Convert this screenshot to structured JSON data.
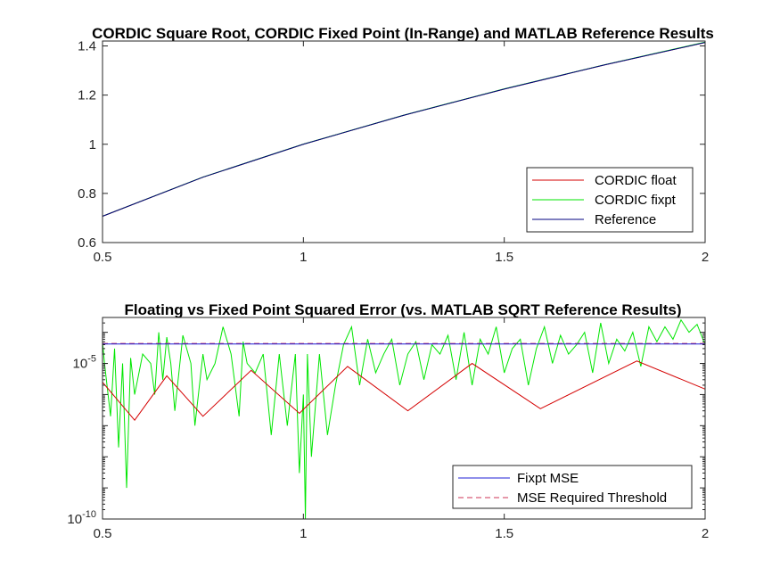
{
  "chart_data": [
    {
      "type": "line",
      "title": "CORDIC Square Root, CORDIC Fixed Point (In-Range) and MATLAB Reference Results",
      "xlabel": "",
      "ylabel": "",
      "xlim": [
        0.5,
        2
      ],
      "ylim": [
        0.6,
        1.42
      ],
      "x_ticks": [
        0.5,
        1,
        1.5,
        2
      ],
      "x_tick_labels": [
        "0.5",
        "1",
        "1.5",
        "2"
      ],
      "y_ticks": [
        0.6,
        0.8,
        1.0,
        1.2,
        1.4
      ],
      "y_tick_labels": [
        "0.6",
        "0.8",
        "1",
        "1.2",
        "1.4"
      ],
      "grid": false,
      "legend_position": "bottom-right",
      "series": [
        {
          "name": "CORDIC float",
          "color": "#d40000",
          "style": "solid",
          "x": [
            0.5,
            0.75,
            1.0,
            1.25,
            1.5,
            1.75,
            2.0
          ],
          "y": [
            0.7071,
            0.866,
            1.0,
            1.118,
            1.2247,
            1.3229,
            1.4142
          ]
        },
        {
          "name": "CORDIC fixpt",
          "color": "#00e600",
          "style": "solid",
          "x": [
            0.5,
            0.75,
            1.0,
            1.25,
            1.5,
            1.75,
            2.0
          ],
          "y": [
            0.7072,
            0.8665,
            1.0005,
            1.1185,
            1.2255,
            1.3236,
            1.4155
          ]
        },
        {
          "name": "Reference",
          "color": "#000080",
          "style": "solid",
          "x": [
            0.5,
            0.75,
            1.0,
            1.25,
            1.5,
            1.75,
            2.0
          ],
          "y": [
            0.7071,
            0.866,
            1.0,
            1.118,
            1.2247,
            1.3229,
            1.4142
          ]
        }
      ]
    },
    {
      "type": "line",
      "title": "Floating vs Fixed Point Squared Error (vs. MATLAB SQRT Reference Results)",
      "xlabel": "",
      "ylabel": "",
      "xlim": [
        0.5,
        2
      ],
      "ylim": [
        1e-10,
        0.0003
      ],
      "yscale": "log",
      "x_ticks": [
        0.5,
        1,
        1.5,
        2
      ],
      "x_tick_labels": [
        "0.5",
        "1",
        "1.5",
        "2"
      ],
      "y_ticks": [
        1e-10,
        1e-05
      ],
      "y_tick_labels": [
        {
          "base": "10",
          "exp": "-10"
        },
        {
          "base": "10",
          "exp": "-5"
        }
      ],
      "grid": false,
      "legend_position": "bottom-right",
      "series": [
        {
          "name": "Fixpt MSE",
          "color": "#1f1fd6",
          "style": "solid",
          "x": [
            0.5,
            2.0
          ],
          "y": [
            4.2e-05,
            4.2e-05
          ]
        },
        {
          "name": "MSE Required Threshold",
          "color": "#cc3355",
          "style": "dashed",
          "x": [
            0.5,
            2.0
          ],
          "y": [
            4.4e-05,
            4.4e-05
          ]
        },
        {
          "name": "",
          "color": "#d40000",
          "style": "solid",
          "x": [
            0.5,
            0.58,
            0.66,
            0.75,
            0.87,
            0.99,
            1.11,
            1.26,
            1.42,
            1.59,
            1.83,
            2.0
          ],
          "y": [
            2.5e-06,
            1.5e-07,
            4e-06,
            2e-07,
            6e-06,
            2.5e-07,
            8e-06,
            3e-07,
            1e-05,
            3.5e-07,
            1.2e-05,
            1.5e-06
          ]
        },
        {
          "name": "",
          "color": "#00e600",
          "style": "solid",
          "x": [
            0.5,
            0.505,
            0.52,
            0.53,
            0.54,
            0.55,
            0.56,
            0.57,
            0.58,
            0.6,
            0.62,
            0.63,
            0.64,
            0.65,
            0.66,
            0.67,
            0.68,
            0.7,
            0.72,
            0.73,
            0.75,
            0.76,
            0.78,
            0.8,
            0.82,
            0.84,
            0.85,
            0.86,
            0.88,
            0.9,
            0.92,
            0.94,
            0.96,
            0.98,
            0.99,
            1.0,
            1.005,
            1.01,
            1.02,
            1.04,
            1.06,
            1.08,
            1.1,
            1.12,
            1.14,
            1.16,
            1.18,
            1.2,
            1.22,
            1.24,
            1.26,
            1.28,
            1.3,
            1.32,
            1.34,
            1.36,
            1.38,
            1.4,
            1.42,
            1.44,
            1.46,
            1.48,
            1.5,
            1.52,
            1.54,
            1.56,
            1.58,
            1.6,
            1.62,
            1.64,
            1.66,
            1.68,
            1.7,
            1.72,
            1.74,
            1.76,
            1.78,
            1.8,
            1.82,
            1.84,
            1.86,
            1.88,
            1.9,
            1.92,
            1.94,
            1.96,
            1.98,
            2.0
          ],
          "y": [
            5e-05,
            1e-05,
            2e-07,
            3e-05,
            2e-08,
            1e-05,
            1e-09,
            1.5e-05,
            1e-06,
            2e-05,
            1e-05,
            1e-06,
            0.0001,
            3e-06,
            7e-05,
            1e-05,
            3e-07,
            8e-05,
            1e-05,
            1e-07,
            2e-05,
            3e-06,
            1e-05,
            0.00015,
            2e-05,
            2e-07,
            5e-05,
            1e-05,
            5e-06,
            2e-05,
            5e-08,
            2e-05,
            1e-07,
            2e-05,
            3e-09,
            1e-06,
            1e-10,
            2e-05,
            1e-08,
            2e-05,
            5e-08,
            2e-06,
            4e-05,
            0.00015,
            2e-06,
            6e-05,
            5e-06,
            2e-05,
            6e-05,
            2e-06,
            2e-05,
            5e-05,
            3e-06,
            4e-05,
            2e-05,
            8e-05,
            3e-06,
            0.0001,
            2e-06,
            6e-05,
            2e-05,
            0.00015,
            5e-06,
            3e-05,
            6e-05,
            2e-06,
            3e-05,
            0.00015,
            1e-05,
            8e-05,
            2e-05,
            4e-05,
            0.0001,
            5e-06,
            0.0002,
            1e-05,
            6e-05,
            2.5e-05,
            0.0001,
            8e-06,
            0.00015,
            5e-05,
            0.00015,
            6e-05,
            0.00025,
            0.0001,
            0.00018,
            4e-05
          ]
        }
      ],
      "legend_entries": [
        {
          "name": "Fixpt MSE",
          "color": "#1f1fd6",
          "style": "solid"
        },
        {
          "name": "MSE Required Threshold",
          "color": "#cc3355",
          "style": "dashed"
        }
      ]
    }
  ]
}
